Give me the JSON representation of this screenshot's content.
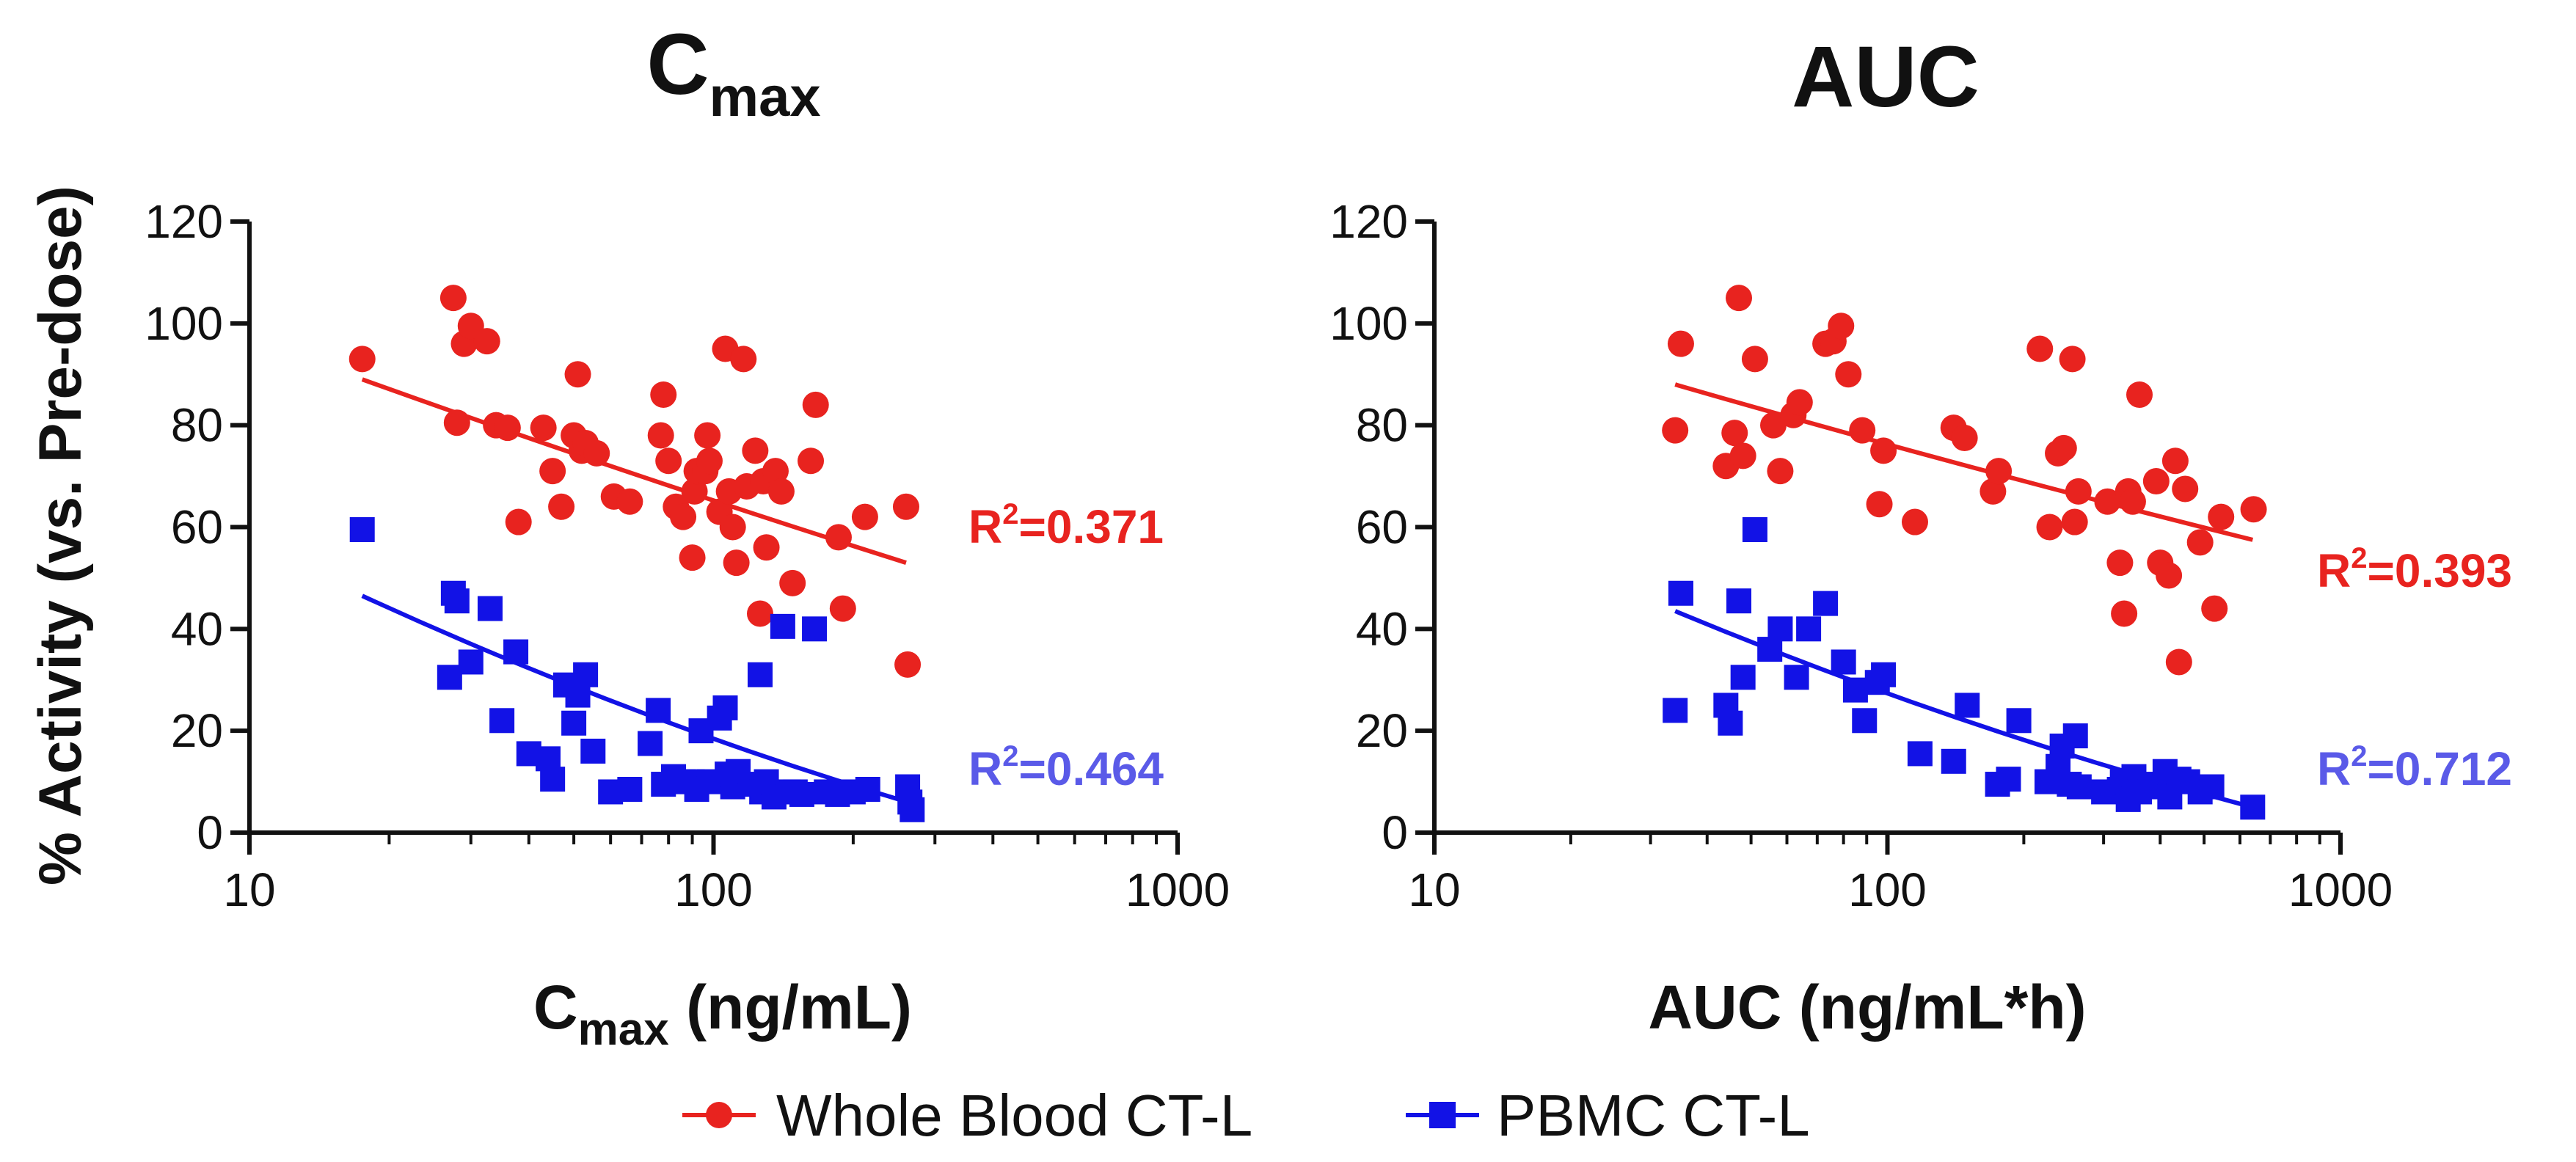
{
  "ylabel": "% Activity (vs. Pre-dose)",
  "legend": [
    {
      "label": "Whole Blood CT-L",
      "color": "#e8231f",
      "marker": "circle"
    },
    {
      "label": "PBMC CT-L",
      "color": "#1212e6",
      "marker": "square"
    }
  ],
  "chart_data": [
    {
      "type": "scatter",
      "title_main": "C",
      "title_sub": "max",
      "xlabel_main": "C",
      "xlabel_sub": "max",
      "xlabel_rest": " (ng/mL)",
      "xscale": "log",
      "xlim": [
        10,
        1000
      ],
      "ylim": [
        0,
        120
      ],
      "xticks": [
        10,
        100,
        1000
      ],
      "xtick_labels": [
        "10",
        "100",
        "1000"
      ],
      "yticks": [
        0,
        20,
        40,
        60,
        80,
        100,
        120
      ],
      "ytick_labels": [
        "0",
        "20",
        "40",
        "60",
        "80",
        "100",
        "120"
      ],
      "series": [
        {
          "name": "Whole Blood CT-L",
          "color": "#e8231f",
          "marker": "circle",
          "r2_prefix": "R",
          "r2_exp": "2",
          "r2_value": "=0.371",
          "fit": [
            [
              17.5,
              89
            ],
            [
              260,
              53
            ]
          ],
          "points": [
            [
              17.5,
              93
            ],
            [
              27.5,
              105
            ],
            [
              28,
              80.5
            ],
            [
              29,
              96
            ],
            [
              30,
              99.5
            ],
            [
              32.5,
              96.5
            ],
            [
              34,
              80
            ],
            [
              36,
              79.5
            ],
            [
              38,
              61
            ],
            [
              43,
              79.5
            ],
            [
              45,
              71
            ],
            [
              47,
              64
            ],
            [
              50,
              78
            ],
            [
              51,
              90
            ],
            [
              52,
              75
            ],
            [
              53,
              76.5
            ],
            [
              56,
              74.5
            ],
            [
              61,
              66
            ],
            [
              66,
              65
            ],
            [
              77,
              78
            ],
            [
              78,
              86
            ],
            [
              80,
              73
            ],
            [
              83,
              64
            ],
            [
              86,
              62
            ],
            [
              90,
              54
            ],
            [
              91,
              67
            ],
            [
              92,
              71
            ],
            [
              96,
              71
            ],
            [
              97,
              78
            ],
            [
              98,
              73
            ],
            [
              103,
              63
            ],
            [
              106,
              95
            ],
            [
              108,
              67
            ],
            [
              110,
              60
            ],
            [
              112,
              53
            ],
            [
              116,
              93
            ],
            [
              118,
              68
            ],
            [
              123,
              75
            ],
            [
              126,
              43
            ],
            [
              128,
              69
            ],
            [
              130,
              56
            ],
            [
              136,
              71
            ],
            [
              140,
              67
            ],
            [
              148,
              49
            ],
            [
              162,
              73
            ],
            [
              166,
              84
            ],
            [
              186,
              58
            ],
            [
              190,
              44
            ],
            [
              212,
              62
            ],
            [
              260,
              64
            ],
            [
              262,
              33
            ]
          ]
        },
        {
          "name": "PBMC CT-L",
          "color": "#1212e6",
          "marker": "square",
          "r2_prefix": "R",
          "r2_exp": "2",
          "r2_value": "=0.464",
          "fit": [
            [
              17.5,
              46.5
            ],
            [
              262,
              6
            ]
          ],
          "points": [
            [
              17.5,
              59.5
            ],
            [
              27,
              30.5
            ],
            [
              27.5,
              47
            ],
            [
              28,
              45.5
            ],
            [
              30,
              33.5
            ],
            [
              33,
              44
            ],
            [
              35,
              22
            ],
            [
              37.5,
              35.5
            ],
            [
              40,
              15.5
            ],
            [
              44,
              14.5
            ],
            [
              45,
              10.5
            ],
            [
              48,
              29
            ],
            [
              50,
              21.5
            ],
            [
              51,
              27
            ],
            [
              53,
              31
            ],
            [
              55,
              16
            ],
            [
              60,
              8
            ],
            [
              66,
              8.5
            ],
            [
              73,
              17.5
            ],
            [
              76,
              24
            ],
            [
              78,
              9.5
            ],
            [
              82,
              11
            ],
            [
              86,
              10
            ],
            [
              90,
              10
            ],
            [
              92,
              8.5
            ],
            [
              94,
              20
            ],
            [
              98,
              10
            ],
            [
              103,
              22.5
            ],
            [
              106,
              24.5
            ],
            [
              107,
              11.5
            ],
            [
              110,
              9
            ],
            [
              113,
              12
            ],
            [
              120,
              9.5
            ],
            [
              126,
              31
            ],
            [
              127,
              8
            ],
            [
              130,
              10
            ],
            [
              135,
              7
            ],
            [
              141,
              40.5
            ],
            [
              145,
              8
            ],
            [
              150,
              8
            ],
            [
              155,
              7.5
            ],
            [
              165,
              40
            ],
            [
              175,
              8
            ],
            [
              185,
              7.5
            ],
            [
              200,
              8
            ],
            [
              215,
              8.5
            ],
            [
              262,
              9
            ],
            [
              265,
              6
            ],
            [
              268,
              4.5
            ]
          ]
        }
      ]
    },
    {
      "type": "scatter",
      "title_main": "AUC",
      "title_sub": "",
      "xlabel_main": "AUC (ng/mL*h)",
      "xlabel_sub": "",
      "xlabel_rest": "",
      "xscale": "log",
      "xlim": [
        10,
        1000
      ],
      "ylim": [
        0,
        120
      ],
      "xticks": [
        10,
        100,
        1000
      ],
      "xtick_labels": [
        "10",
        "100",
        "1000"
      ],
      "yticks": [
        0,
        20,
        40,
        60,
        80,
        100,
        120
      ],
      "ytick_labels": [
        "0",
        "20",
        "40",
        "60",
        "80",
        "100",
        "120"
      ],
      "series": [
        {
          "name": "Whole Blood CT-L",
          "color": "#e8231f",
          "marker": "circle",
          "r2_prefix": "R",
          "r2_exp": "2",
          "r2_value": "=0.393",
          "fit": [
            [
              34,
              88
            ],
            [
              640,
              57.5
            ]
          ],
          "points": [
            [
              34,
              79
            ],
            [
              35,
              96
            ],
            [
              44,
              72
            ],
            [
              46,
              78.5
            ],
            [
              47,
              105
            ],
            [
              48,
              74
            ],
            [
              51,
              93
            ],
            [
              56,
              80
            ],
            [
              58,
              71
            ],
            [
              62,
              82
            ],
            [
              64,
              84.5
            ],
            [
              73,
              96
            ],
            [
              76,
              96.5
            ],
            [
              79,
              99.5
            ],
            [
              82,
              90
            ],
            [
              88,
              79
            ],
            [
              96,
              64.5
            ],
            [
              98,
              75
            ],
            [
              115,
              61
            ],
            [
              140,
              79.5
            ],
            [
              148,
              77.5
            ],
            [
              171,
              67
            ],
            [
              176,
              71
            ],
            [
              217,
              95
            ],
            [
              228,
              60
            ],
            [
              238,
              74.5
            ],
            [
              245,
              75.5
            ],
            [
              256,
              93
            ],
            [
              259,
              61
            ],
            [
              264,
              67
            ],
            [
              306,
              65
            ],
            [
              326,
              53
            ],
            [
              333,
              43
            ],
            [
              340,
              67
            ],
            [
              348,
              65
            ],
            [
              360,
              86
            ],
            [
              392,
              69
            ],
            [
              400,
              53
            ],
            [
              418,
              50.5
            ],
            [
              432,
              73
            ],
            [
              440,
              33.5
            ],
            [
              454,
              67.5
            ],
            [
              490,
              57
            ],
            [
              527,
              44
            ],
            [
              545,
              62
            ],
            [
              643,
              63.5
            ]
          ]
        },
        {
          "name": "PBMC CT-L",
          "color": "#1212e6",
          "marker": "square",
          "r2_prefix": "R",
          "r2_exp": "2",
          "r2_value": "=0.712",
          "fit": [
            [
              34,
              43.5
            ],
            [
              640,
              5
            ]
          ],
          "points": [
            [
              34,
              24
            ],
            [
              35,
              47
            ],
            [
              44,
              25
            ],
            [
              45,
              21.5
            ],
            [
              47,
              45.5
            ],
            [
              48,
              30.5
            ],
            [
              51,
              59.5
            ],
            [
              55,
              36
            ],
            [
              58,
              40
            ],
            [
              63,
              30.5
            ],
            [
              67,
              40
            ],
            [
              73,
              45
            ],
            [
              80,
              33.5
            ],
            [
              85,
              28
            ],
            [
              89,
              22
            ],
            [
              95,
              29.5
            ],
            [
              98,
              31
            ],
            [
              118,
              15.5
            ],
            [
              140,
              14
            ],
            [
              150,
              25
            ],
            [
              175,
              9.5
            ],
            [
              185,
              10.5
            ],
            [
              195,
              22
            ],
            [
              225,
              10
            ],
            [
              238,
              13
            ],
            [
              243,
              17
            ],
            [
              252,
              9.5
            ],
            [
              260,
              19
            ],
            [
              265,
              9
            ],
            [
              300,
              8
            ],
            [
              325,
              8.5
            ],
            [
              330,
              10
            ],
            [
              340,
              6.5
            ],
            [
              350,
              11
            ],
            [
              360,
              8
            ],
            [
              380,
              9.5
            ],
            [
              395,
              9
            ],
            [
              410,
              12
            ],
            [
              420,
              7
            ],
            [
              440,
              10.5
            ],
            [
              460,
              10
            ],
            [
              490,
              8
            ],
            [
              520,
              9
            ],
            [
              640,
              5
            ]
          ]
        }
      ]
    }
  ]
}
